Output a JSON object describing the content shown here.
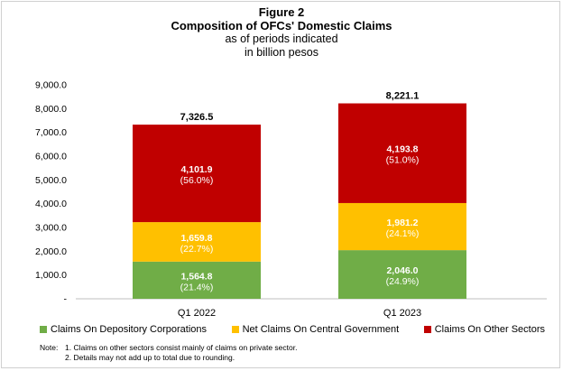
{
  "figure_label": "Figure 2",
  "title": "Composition of OFCs' Domestic Claims",
  "subtitle_line1": "as of periods indicated",
  "subtitle_line2": "in billion pesos",
  "notes": {
    "label": "Note:",
    "lines": [
      "1. Claims on other sectors consist mainly of claims on private sector.",
      "2. Details may not add up to total due to rounding."
    ]
  },
  "chart_data": {
    "type": "bar",
    "stacked": true,
    "categories": [
      "Q1 2022",
      "Q1 2023"
    ],
    "ylim": [
      0,
      9000
    ],
    "yticks": [
      0,
      1000,
      2000,
      3000,
      4000,
      5000,
      6000,
      7000,
      8000,
      9000
    ],
    "ytick_labels": [
      "-",
      "1,000.0",
      "2,000.0",
      "3,000.0",
      "4,000.0",
      "5,000.0",
      "6,000.0",
      "7,000.0",
      "8,000.0",
      "9,000.0"
    ],
    "grid": false,
    "legend_position": "bottom",
    "totals": [
      7326.5,
      8221.1
    ],
    "total_labels": [
      "7,326.5",
      "8,221.1"
    ],
    "series": [
      {
        "name": "Claims On Depository Corporations",
        "color": "#70ad47",
        "values": [
          1564.8,
          2046.0
        ],
        "value_labels": [
          "1,564.8",
          "2,046.0"
        ],
        "share_labels": [
          "(21.4%)",
          "(24.9%)"
        ]
      },
      {
        "name": "Net Claims On Central Government",
        "color": "#ffc000",
        "values": [
          1659.8,
          1981.2
        ],
        "value_labels": [
          "1,659.8",
          "1,981.2"
        ],
        "share_labels": [
          "(22.7%)",
          "(24.1%)"
        ]
      },
      {
        "name": "Claims On Other Sectors",
        "color": "#c00000",
        "values": [
          4101.9,
          4193.8
        ],
        "value_labels": [
          "4,101.9",
          "4,193.8"
        ],
        "share_labels": [
          "(56.0%)",
          "(51.0%)"
        ]
      }
    ]
  }
}
